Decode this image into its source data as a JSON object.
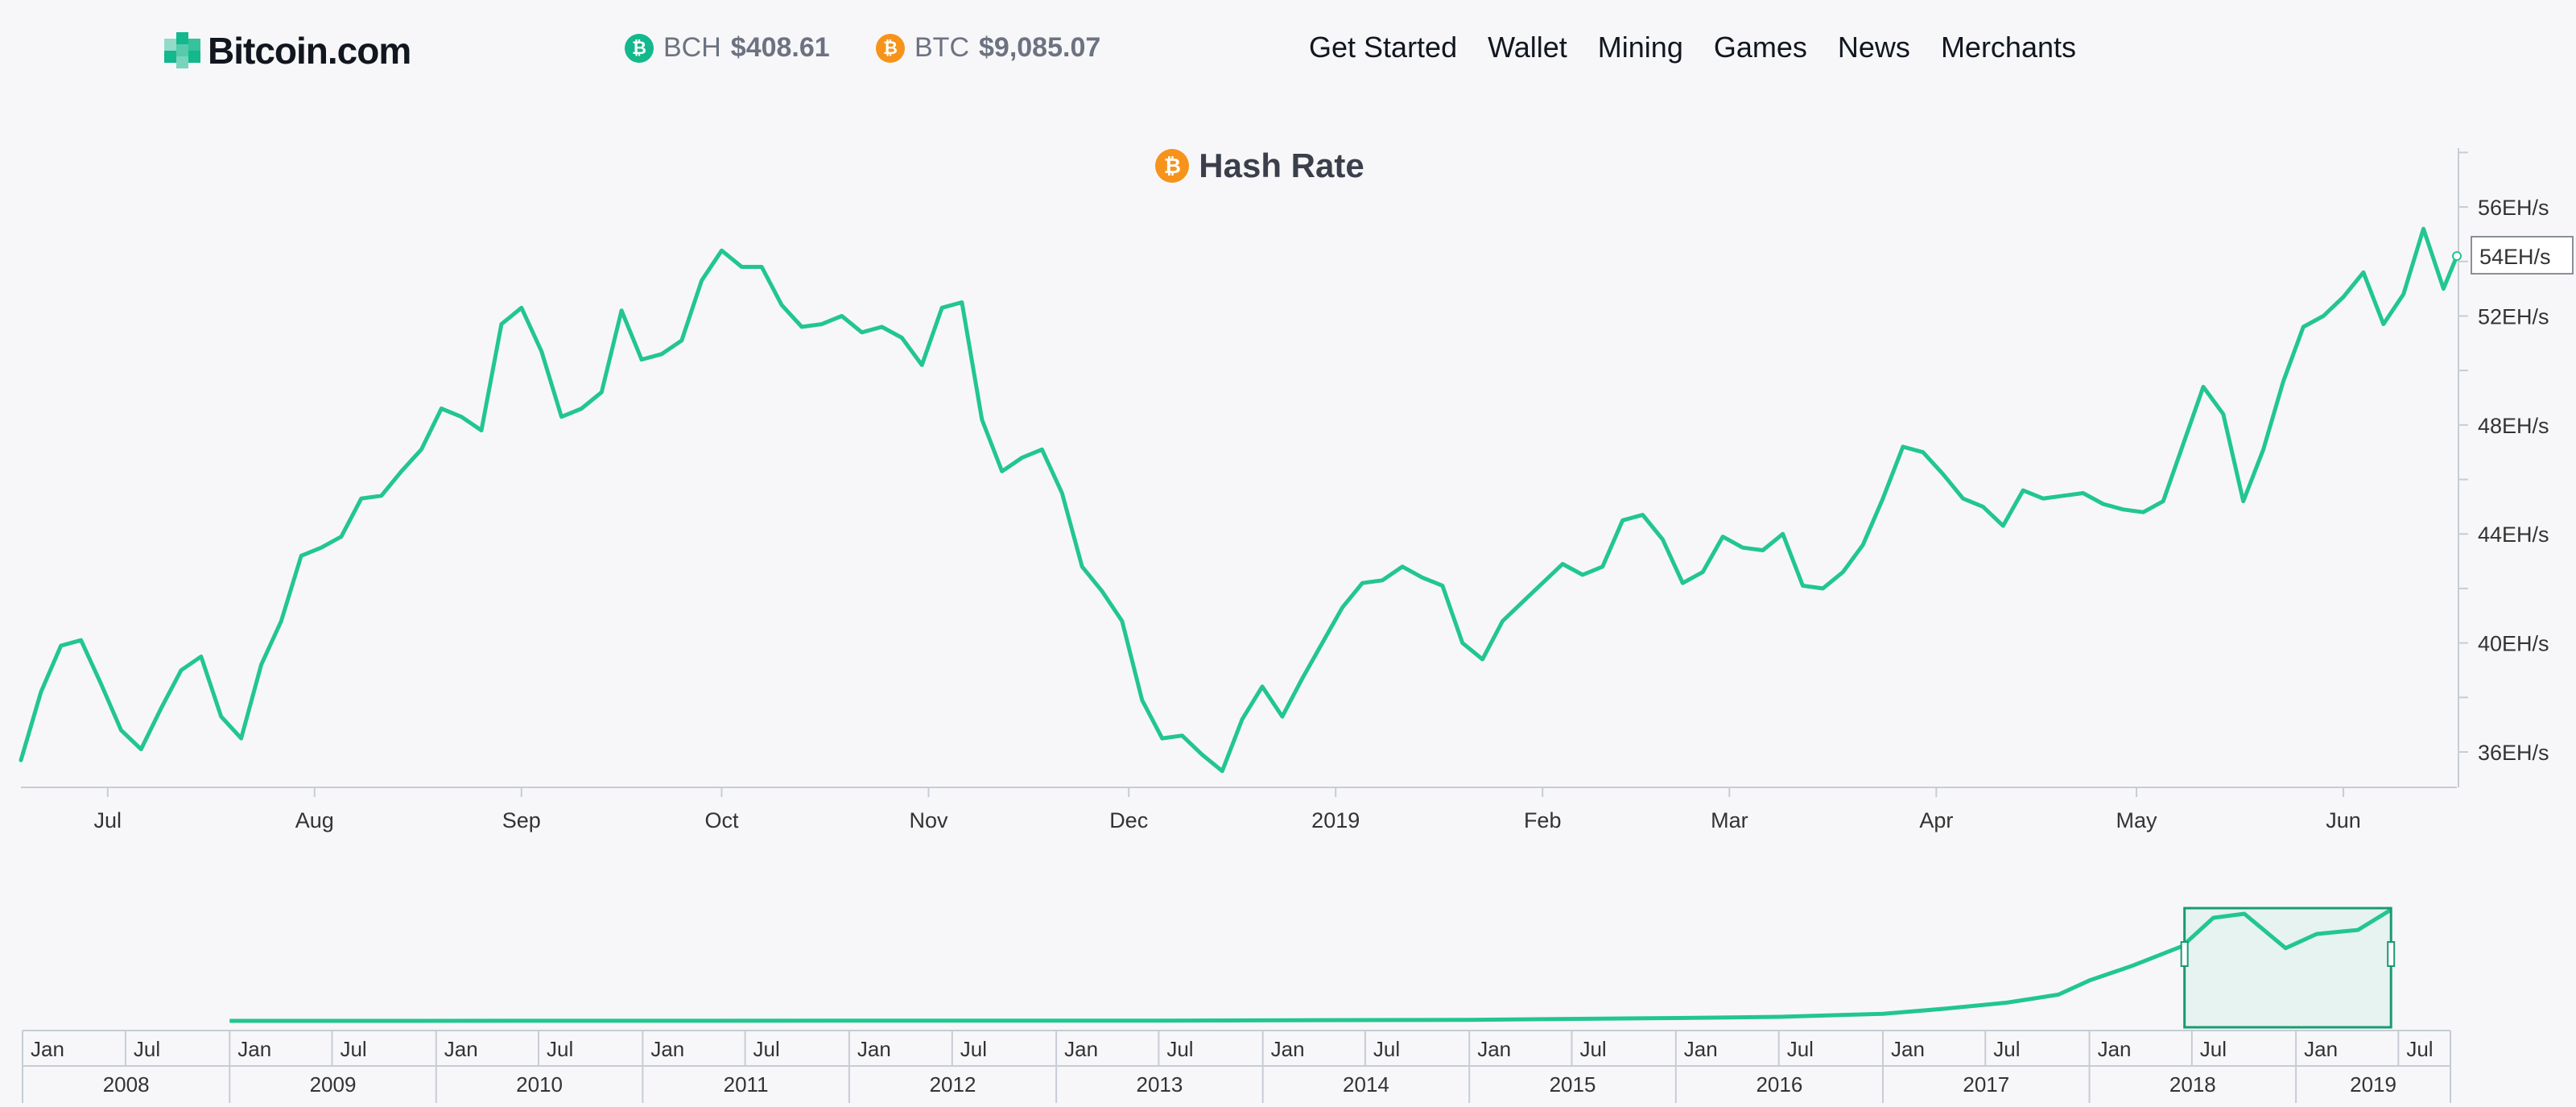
{
  "header": {
    "logo_text": "Bitcoin.com",
    "tickers": [
      {
        "symbol": "BCH",
        "price": "$408.61",
        "icon": "bch-coin-icon",
        "color": "#13b88c"
      },
      {
        "symbol": "BTC",
        "price": "$9,085.07",
        "icon": "btc-coin-icon",
        "color": "#f7931a"
      }
    ],
    "nav": [
      "Get Started",
      "Wallet",
      "Mining",
      "Games",
      "News",
      "Merchants"
    ]
  },
  "coin_glyph": "₿",
  "chart_data": {
    "type": "line",
    "title": "Hash Rate",
    "title_icon": "btc-coin-icon",
    "line_color": "#22c68f",
    "y_unit": "EH/s",
    "ylim": [
      34.7,
      58.1
    ],
    "y_ticks": [
      36,
      40,
      44,
      48,
      52,
      56
    ],
    "y_tick_labels": [
      "36EH/s",
      "40EH/s",
      "44EH/s",
      "48EH/s",
      "52EH/s",
      "56EH/s"
    ],
    "current_value_label": "54EH/s",
    "x_range": [
      "2018-06-18",
      "2019-06-18"
    ],
    "x_ticks": [
      {
        "date": "2018-07-01",
        "label": "Jul"
      },
      {
        "date": "2018-08-01",
        "label": "Aug"
      },
      {
        "date": "2018-09-01",
        "label": "Sep"
      },
      {
        "date": "2018-10-01",
        "label": "Oct"
      },
      {
        "date": "2018-11-01",
        "label": "Nov"
      },
      {
        "date": "2018-12-01",
        "label": "Dec"
      },
      {
        "date": "2019-01-01",
        "label": "2019"
      },
      {
        "date": "2019-02-01",
        "label": "Feb"
      },
      {
        "date": "2019-03-01",
        "label": "Mar"
      },
      {
        "date": "2019-04-01",
        "label": "Apr"
      },
      {
        "date": "2019-05-01",
        "label": "May"
      },
      {
        "date": "2019-06-01",
        "label": "Jun"
      }
    ],
    "series": [
      {
        "x": [
          "2018-06-18",
          "2018-06-21",
          "2018-06-24",
          "2018-06-27",
          "2018-06-30",
          "2018-07-03",
          "2018-07-06",
          "2018-07-09",
          "2018-07-12",
          "2018-07-15",
          "2018-07-18",
          "2018-07-21",
          "2018-07-24",
          "2018-07-27",
          "2018-07-30",
          "2018-08-02",
          "2018-08-05",
          "2018-08-08",
          "2018-08-11",
          "2018-08-14",
          "2018-08-17",
          "2018-08-20",
          "2018-08-23",
          "2018-08-26",
          "2018-08-29",
          "2018-09-01",
          "2018-09-04",
          "2018-09-07",
          "2018-09-10",
          "2018-09-13",
          "2018-09-16",
          "2018-09-19",
          "2018-09-22",
          "2018-09-25",
          "2018-09-28",
          "2018-10-01",
          "2018-10-04",
          "2018-10-07",
          "2018-10-10",
          "2018-10-13",
          "2018-10-16",
          "2018-10-19",
          "2018-10-22",
          "2018-10-25",
          "2018-10-28",
          "2018-10-31",
          "2018-11-03",
          "2018-11-06",
          "2018-11-09",
          "2018-11-12",
          "2018-11-15",
          "2018-11-18",
          "2018-11-21",
          "2018-11-24",
          "2018-11-27",
          "2018-11-30",
          "2018-12-03",
          "2018-12-06",
          "2018-12-09",
          "2018-12-12",
          "2018-12-15",
          "2018-12-18",
          "2018-12-21",
          "2018-12-24",
          "2018-12-27",
          "2018-12-30",
          "2019-01-02",
          "2019-01-05",
          "2019-01-08",
          "2019-01-11",
          "2019-01-14",
          "2019-01-17",
          "2019-01-20",
          "2019-01-23",
          "2019-01-26",
          "2019-01-29",
          "2019-02-01",
          "2019-02-04",
          "2019-02-07",
          "2019-02-10",
          "2019-02-13",
          "2019-02-16",
          "2019-02-19",
          "2019-02-22",
          "2019-02-25",
          "2019-02-28",
          "2019-03-03",
          "2019-03-06",
          "2019-03-09",
          "2019-03-12",
          "2019-03-15",
          "2019-03-18",
          "2019-03-21",
          "2019-03-24",
          "2019-03-27",
          "2019-03-30",
          "2019-04-02",
          "2019-04-05",
          "2019-04-08",
          "2019-04-11",
          "2019-04-14",
          "2019-04-17",
          "2019-04-20",
          "2019-04-23",
          "2019-04-26",
          "2019-04-29",
          "2019-05-02",
          "2019-05-05",
          "2019-05-08",
          "2019-05-11",
          "2019-05-14",
          "2019-05-17",
          "2019-05-20",
          "2019-05-23",
          "2019-05-26",
          "2019-05-29",
          "2019-06-01",
          "2019-06-04",
          "2019-06-07",
          "2019-06-10",
          "2019-06-13",
          "2019-06-16",
          "2019-06-18"
        ],
        "y": [
          35.7,
          38.2,
          39.9,
          40.1,
          38.5,
          36.8,
          36.1,
          37.6,
          39.0,
          39.5,
          37.3,
          36.5,
          39.2,
          40.8,
          43.2,
          43.5,
          43.9,
          45.3,
          45.4,
          46.3,
          47.1,
          48.6,
          48.3,
          47.8,
          51.7,
          52.3,
          50.7,
          48.3,
          48.6,
          49.2,
          52.2,
          50.4,
          50.6,
          51.1,
          53.3,
          54.4,
          53.8,
          53.8,
          52.4,
          51.6,
          51.7,
          52.0,
          51.4,
          51.6,
          51.2,
          50.2,
          52.3,
          52.5,
          48.2,
          46.3,
          46.8,
          47.1,
          45.5,
          42.8,
          41.9,
          40.8,
          37.9,
          36.5,
          36.6,
          35.9,
          35.3,
          37.2,
          38.4,
          37.3,
          38.7,
          40.0,
          41.3,
          42.2,
          42.3,
          42.8,
          42.4,
          42.1,
          40.0,
          39.4,
          40.8,
          41.5,
          42.2,
          42.9,
          42.5,
          42.8,
          44.5,
          44.7,
          43.8,
          42.2,
          42.6,
          43.9,
          43.5,
          43.4,
          44.0,
          42.1,
          42.0,
          42.6,
          43.6,
          45.3,
          47.2,
          47.0,
          46.2,
          45.3,
          45.0,
          44.3,
          45.6,
          45.3,
          45.4,
          45.5,
          45.1,
          44.9,
          44.8,
          45.2,
          47.3,
          49.4,
          48.4,
          45.2,
          47.1,
          49.6,
          51.6,
          52.0,
          52.7,
          53.6,
          51.7,
          52.8,
          55.2,
          53.0,
          54.2
        ]
      }
    ],
    "navigator": {
      "x_range": [
        "2008-01-01",
        "2019-10-01"
      ],
      "selection": [
        "2018-06-18",
        "2019-06-18"
      ],
      "month_labels": [
        "Jan",
        "Jul",
        "Jan",
        "Jul",
        "Jan",
        "Jul",
        "Jan",
        "Jul",
        "Jan",
        "Jul",
        "Jan",
        "Jul",
        "Jan",
        "Jul",
        "Jan",
        "Jul",
        "Jan",
        "Jul",
        "Jan",
        "Jul",
        "Jan",
        "Jul",
        "Jan",
        "Jul"
      ],
      "year_labels": [
        "2008",
        "2009",
        "2010",
        "2011",
        "2012",
        "2013",
        "2014",
        "2015",
        "2016",
        "2017",
        "2018",
        "2019"
      ],
      "overview": {
        "x": [
          2009.0,
          2013.5,
          2015.0,
          2016.0,
          2016.5,
          2017.0,
          2017.3,
          2017.6,
          2017.85,
          2018.0,
          2018.2,
          2018.45,
          2018.6,
          2018.75,
          2018.95,
          2019.1,
          2019.3,
          2019.46
        ],
        "y": [
          0,
          0.1,
          0.5,
          1.4,
          2.0,
          3.5,
          6,
          9,
          13,
          20,
          27,
          37,
          51,
          53,
          36,
          43,
          45,
          55
        ]
      }
    }
  }
}
